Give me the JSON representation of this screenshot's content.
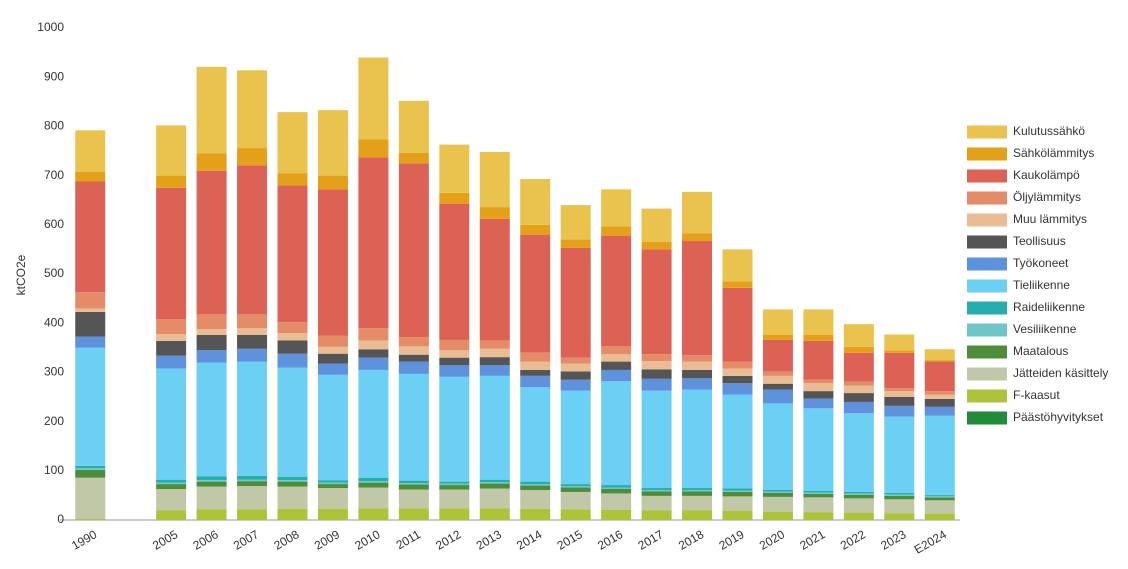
{
  "chart_data": {
    "type": "stacked-bar",
    "y_label": "ktCO2e",
    "categories": [
      "1990",
      null,
      "2005",
      "2006",
      "2007",
      "2008",
      "2009",
      "2010",
      "2011",
      "2012",
      "2013",
      "2014",
      "2015",
      "2016",
      "2017",
      "2018",
      "2019",
      "2020",
      "2021",
      "2022",
      "2023",
      "E2024"
    ],
    "ylim": [
      0,
      1000
    ],
    "yticks": [
      0,
      100,
      200,
      300,
      400,
      500,
      600,
      700,
      800,
      900,
      1000
    ],
    "grid": false,
    "legend": "right",
    "series": [
      {
        "name": "Päästöhyvitykset",
        "color": "#228b3a",
        "values": [
          0,
          null,
          0,
          0,
          0,
          0,
          0,
          0,
          0,
          0,
          0,
          0,
          0,
          0,
          0,
          0,
          0,
          0,
          0,
          0,
          0,
          0
        ]
      },
      {
        "name": "F-kaasut",
        "color": "#aec23a",
        "values": [
          2,
          null,
          20,
          22,
          22,
          23,
          23,
          24,
          24,
          24,
          24,
          23,
          22,
          21,
          20,
          20,
          19,
          17,
          16,
          15,
          14,
          13
        ]
      },
      {
        "name": "Jätteiden käsittely",
        "color": "#c0c8a7",
        "values": [
          84,
          null,
          43,
          46,
          47,
          45,
          42,
          42,
          38,
          38,
          40,
          38,
          35,
          33,
          29,
          29,
          29,
          30,
          30,
          29,
          28,
          27
        ]
      },
      {
        "name": "Maatalous",
        "color": "#4e8c3a",
        "values": [
          16,
          null,
          10,
          10,
          10,
          10,
          8,
          10,
          10,
          9,
          10,
          9,
          9,
          9,
          9,
          9,
          9,
          8,
          7,
          7,
          7,
          6
        ]
      },
      {
        "name": "Vesiliikenne",
        "color": "#6fc6c6",
        "values": [
          3,
          null,
          3,
          3,
          3,
          3,
          3,
          3,
          3,
          3,
          3,
          3,
          3,
          3,
          3,
          3,
          3,
          3,
          3,
          3,
          3,
          3
        ]
      },
      {
        "name": "Raideliikenne",
        "color": "#26aeae",
        "values": [
          5,
          null,
          6,
          8,
          8,
          7,
          5,
          7,
          5,
          4,
          5,
          5,
          4,
          5,
          4,
          4,
          4,
          3,
          3,
          3,
          3,
          2
        ]
      },
      {
        "name": "Tieliikenne",
        "color": "#6ccff4",
        "values": [
          240,
          null,
          226,
          231,
          232,
          222,
          214,
          219,
          217,
          213,
          211,
          192,
          190,
          211,
          198,
          200,
          191,
          176,
          168,
          160,
          155,
          161
        ]
      },
      {
        "name": "Työkoneet",
        "color": "#5f92dc",
        "values": [
          23,
          null,
          26,
          25,
          26,
          28,
          23,
          25,
          25,
          24,
          22,
          23,
          22,
          23,
          24,
          23,
          23,
          28,
          20,
          23,
          22,
          18
        ]
      },
      {
        "name": "Teollisuus",
        "color": "#555555",
        "values": [
          50,
          null,
          30,
          31,
          28,
          27,
          20,
          17,
          14,
          15,
          16,
          12,
          17,
          17,
          19,
          17,
          15,
          12,
          15,
          18,
          18,
          16
        ]
      },
      {
        "name": "Muu lämmitys",
        "color": "#e9bc94",
        "values": [
          7,
          null,
          14,
          12,
          14,
          15,
          14,
          18,
          17,
          15,
          17,
          17,
          16,
          15,
          17,
          17,
          15,
          16,
          16,
          15,
          12,
          9
        ]
      },
      {
        "name": "Öljylämmitys",
        "color": "#e48b68",
        "values": [
          33,
          null,
          30,
          30,
          28,
          22,
          23,
          25,
          19,
          21,
          17,
          18,
          12,
          16,
          14,
          13,
          14,
          9,
          7,
          8,
          6,
          7
        ]
      },
      {
        "name": "Kaukolämpö",
        "color": "#dc6255",
        "values": [
          225,
          null,
          267,
          292,
          303,
          278,
          297,
          347,
          353,
          277,
          247,
          240,
          223,
          225,
          213,
          232,
          150,
          64,
          79,
          59,
          72,
          60
        ]
      },
      {
        "name": "Sähkölämmitys",
        "color": "#e5a019",
        "values": [
          20,
          null,
          25,
          35,
          35,
          25,
          28,
          37,
          21,
          22,
          24,
          20,
          17,
          19,
          15,
          16,
          13,
          10,
          12,
          12,
          5,
          3
        ]
      },
      {
        "name": "Kulutussähkö",
        "color": "#eac24e",
        "values": [
          84,
          null,
          102,
          176,
          158,
          124,
          133,
          166,
          106,
          98,
          112,
          93,
          70,
          75,
          68,
          84,
          65,
          52,
          52,
          46,
          32,
          22
        ]
      }
    ]
  }
}
